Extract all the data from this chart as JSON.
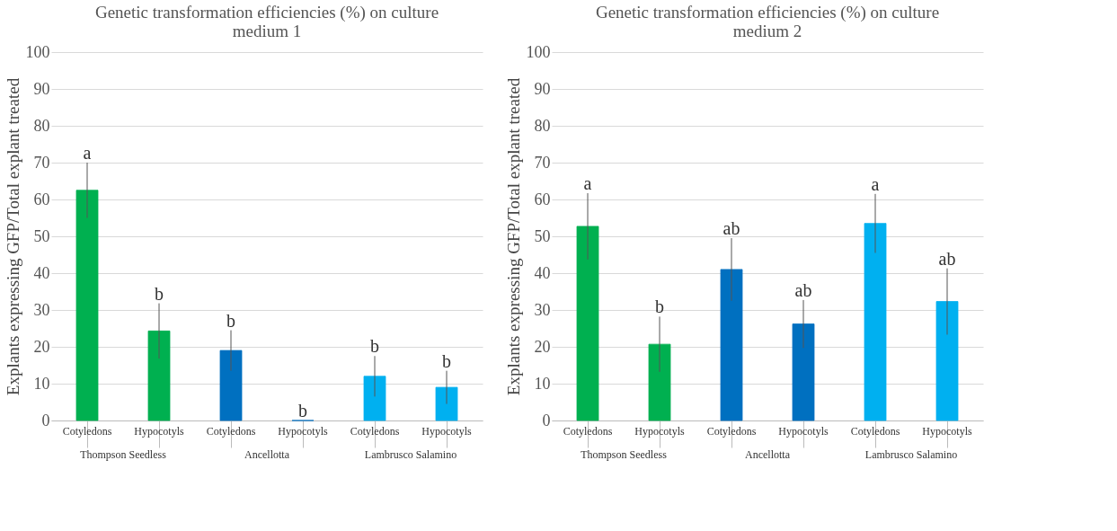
{
  "chart_data": [
    {
      "type": "bar",
      "title": "Genetic transformation efficiencies (%) on culture medium 1",
      "ylabel": "Explants expressing GFP/Total explant treated",
      "categories": [
        "Cotyledons",
        "Hypocotyls",
        "Cotyledons",
        "Hypocotyls",
        "Cotyledons",
        "Hypocotyls"
      ],
      "values": [
        62.5,
        24.3,
        19,
        0,
        12,
        9
      ],
      "errors": [
        7.5,
        7.5,
        5.5,
        null,
        5.5,
        4.5
      ],
      "value_labels": [
        "a",
        "b",
        "b",
        "b",
        "b",
        "b"
      ],
      "colors": [
        "#00b050",
        "#00b050",
        "#0070c0",
        "#0070c0",
        "#00b0f0",
        "#00b0f0"
      ],
      "annotations": [
        "Thompson Seedless",
        "Ancellotta",
        "Lambrusco Salamino"
      ],
      "ylim": [
        0,
        100
      ],
      "yticks": [
        0,
        10,
        20,
        30,
        40,
        50,
        60,
        70,
        80,
        90,
        100
      ],
      "grid": "y"
    },
    {
      "type": "bar",
      "title": "Genetic transformation efficiencies (%) on culture medium 2",
      "ylabel": "Explants expressing GFP/Total explant treated",
      "categories": [
        "Cotyledons",
        "Hypocotyls",
        "Cotyledons",
        "Hypocotyls",
        "Cotyledons",
        "Hypocotyls"
      ],
      "values": [
        52.7,
        20.7,
        41,
        26.2,
        53.5,
        32.3
      ],
      "errors": [
        9,
        7.5,
        8.5,
        6.5,
        8,
        9
      ],
      "value_labels": [
        "a",
        "b",
        "ab",
        "ab",
        "a",
        "ab"
      ],
      "colors": [
        "#00b050",
        "#00b050",
        "#0070c0",
        "#0070c0",
        "#00b0f0",
        "#00b0f0"
      ],
      "annotations": [
        "Thompson Seedless",
        "Ancellotta",
        "Lambrusco Salamino"
      ],
      "ylim": [
        0,
        100
      ],
      "yticks": [
        0,
        10,
        20,
        30,
        40,
        50,
        60,
        70,
        80,
        90,
        100
      ],
      "grid": "y"
    }
  ]
}
